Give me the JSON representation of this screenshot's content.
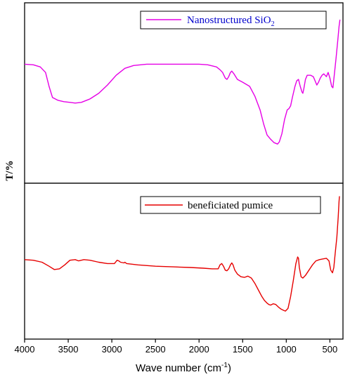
{
  "chart_data": {
    "type": "line",
    "xlabel": "Wave number (cm",
    "xlabel_sup": "-1",
    "xlabel_close": ")",
    "ylabel": "T/%",
    "xlim": [
      4000,
      350
    ],
    "x_reversed": true,
    "xticks": [
      4000,
      3500,
      3000,
      2500,
      2000,
      1500,
      1000,
      500
    ],
    "xtick_labels": [
      "4000",
      "3500",
      "3000",
      "2500",
      "2000",
      "1500",
      "1000",
      "500"
    ],
    "panels": [
      {
        "legend": "Nanostructured SiO",
        "legend_sub": "2",
        "color": "#e600e6",
        "legend_color": "#0000cc",
        "legend_position": "top-right",
        "ylim": [
          0,
          100
        ],
        "points": [
          [
            4000,
            68
          ],
          [
            3900,
            67.5
          ],
          [
            3820,
            66
          ],
          [
            3760,
            62
          ],
          [
            3720,
            52
          ],
          [
            3680,
            44
          ],
          [
            3620,
            42
          ],
          [
            3550,
            41
          ],
          [
            3480,
            40.5
          ],
          [
            3420,
            40
          ],
          [
            3350,
            40.5
          ],
          [
            3250,
            43
          ],
          [
            3150,
            47
          ],
          [
            3050,
            53
          ],
          [
            2950,
            60
          ],
          [
            2850,
            65
          ],
          [
            2750,
            67
          ],
          [
            2600,
            68
          ],
          [
            2400,
            68
          ],
          [
            2200,
            68
          ],
          [
            2000,
            68
          ],
          [
            1900,
            67.5
          ],
          [
            1800,
            66
          ],
          [
            1760,
            64
          ],
          [
            1730,
            62
          ],
          [
            1700,
            58
          ],
          [
            1680,
            57
          ],
          [
            1660,
            59
          ],
          [
            1640,
            62
          ],
          [
            1625,
            63
          ],
          [
            1600,
            61
          ],
          [
            1560,
            57
          ],
          [
            1500,
            55
          ],
          [
            1420,
            52
          ],
          [
            1360,
            45
          ],
          [
            1300,
            35
          ],
          [
            1260,
            25
          ],
          [
            1220,
            17
          ],
          [
            1180,
            14
          ],
          [
            1140,
            11.5
          ],
          [
            1100,
            10.5
          ],
          [
            1080,
            12
          ],
          [
            1050,
            18
          ],
          [
            1020,
            28
          ],
          [
            990,
            35
          ],
          [
            970,
            36
          ],
          [
            950,
            38
          ],
          [
            930,
            44
          ],
          [
            900,
            52
          ],
          [
            880,
            56
          ],
          [
            860,
            57
          ],
          [
            840,
            52
          ],
          [
            820,
            48
          ],
          [
            810,
            47
          ],
          [
            800,
            50
          ],
          [
            780,
            57
          ],
          [
            760,
            60
          ],
          [
            720,
            60
          ],
          [
            690,
            59
          ],
          [
            670,
            56
          ],
          [
            650,
            53
          ],
          [
            630,
            55
          ],
          [
            610,
            58
          ],
          [
            590,
            60
          ],
          [
            570,
            61
          ],
          [
            540,
            59
          ],
          [
            520,
            62
          ],
          [
            500,
            58
          ],
          [
            480,
            52
          ],
          [
            465,
            51
          ],
          [
            450,
            60
          ],
          [
            430,
            72
          ],
          [
            410,
            85
          ],
          [
            395,
            95
          ],
          [
            385,
            100
          ]
        ]
      },
      {
        "legend": "beneficiated pumice",
        "color": "#e60000",
        "legend_color": "#000000",
        "legend_position": "top-right",
        "ylim": [
          0,
          100
        ],
        "points": [
          [
            4000,
            48
          ],
          [
            3900,
            47.5
          ],
          [
            3800,
            46
          ],
          [
            3720,
            43
          ],
          [
            3660,
            40.5
          ],
          [
            3600,
            41
          ],
          [
            3540,
            44
          ],
          [
            3480,
            47.5
          ],
          [
            3420,
            48
          ],
          [
            3380,
            47
          ],
          [
            3320,
            48
          ],
          [
            3250,
            47.5
          ],
          [
            3150,
            46
          ],
          [
            3050,
            45
          ],
          [
            2970,
            45
          ],
          [
            2940,
            47.5
          ],
          [
            2920,
            47
          ],
          [
            2900,
            46
          ],
          [
            2860,
            45.5
          ],
          [
            2850,
            46
          ],
          [
            2830,
            45
          ],
          [
            2700,
            44
          ],
          [
            2500,
            43
          ],
          [
            2300,
            42.5
          ],
          [
            2100,
            42
          ],
          [
            1950,
            41.5
          ],
          [
            1850,
            41
          ],
          [
            1780,
            41
          ],
          [
            1760,
            44
          ],
          [
            1740,
            45
          ],
          [
            1720,
            43
          ],
          [
            1700,
            40
          ],
          [
            1680,
            39.5
          ],
          [
            1660,
            41
          ],
          [
            1640,
            44
          ],
          [
            1625,
            45.5
          ],
          [
            1610,
            44
          ],
          [
            1590,
            40
          ],
          [
            1560,
            37
          ],
          [
            1520,
            35
          ],
          [
            1480,
            34.5
          ],
          [
            1440,
            35.5
          ],
          [
            1400,
            34
          ],
          [
            1360,
            30
          ],
          [
            1320,
            25
          ],
          [
            1280,
            20
          ],
          [
            1250,
            17
          ],
          [
            1220,
            15
          ],
          [
            1200,
            14
          ],
          [
            1180,
            13.5
          ],
          [
            1150,
            14.5
          ],
          [
            1120,
            14
          ],
          [
            1090,
            12
          ],
          [
            1060,
            10.5
          ],
          [
            1030,
            9.5
          ],
          [
            1010,
            9
          ],
          [
            980,
            11
          ],
          [
            950,
            20
          ],
          [
            920,
            32
          ],
          [
            890,
            45
          ],
          [
            870,
            50
          ],
          [
            860,
            49
          ],
          [
            850,
            42
          ],
          [
            830,
            35
          ],
          [
            810,
            34
          ],
          [
            780,
            36
          ],
          [
            740,
            40
          ],
          [
            700,
            44
          ],
          [
            660,
            47
          ],
          [
            620,
            48
          ],
          [
            580,
            48.5
          ],
          [
            540,
            49
          ],
          [
            510,
            47
          ],
          [
            490,
            40
          ],
          [
            470,
            38
          ],
          [
            455,
            42
          ],
          [
            440,
            52
          ],
          [
            420,
            65
          ],
          [
            405,
            80
          ],
          [
            395,
            92
          ],
          [
            390,
            96
          ]
        ]
      }
    ]
  }
}
